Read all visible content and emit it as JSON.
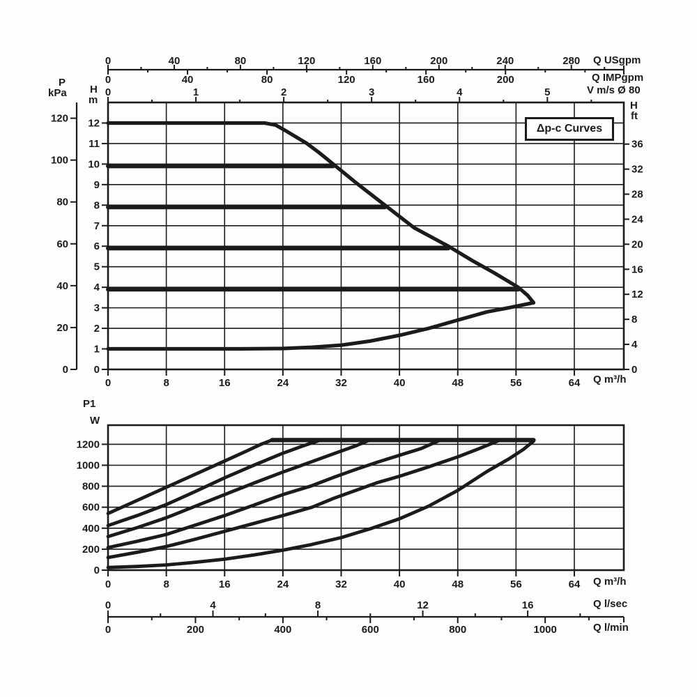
{
  "colors": {
    "ink": "#1b1b1b",
    "background": "#fdfdfd"
  },
  "title_box": "Δp-c Curves",
  "labels": {
    "p": "P",
    "kpa": "kPa",
    "h_left": "H",
    "m": "m",
    "h_right": "H",
    "ft": "ft",
    "q_usgpm": "Q USgpm",
    "q_impgpm": "Q IMPgpm",
    "v_ms": "V m/s Ø 80",
    "q_m3h_top": "Q m³/h",
    "p1": "P1",
    "w": "W",
    "q_m3h_bottom": "Q m³/h",
    "q_lsec": "Q l/sec",
    "q_lmin": "Q l/min"
  },
  "chart_data": [
    {
      "type": "line",
      "name": "head-flow-chart",
      "title": "Δp-c Curves",
      "xlabel": "Q m³/h",
      "ylabel": "H m",
      "xlim": [
        0,
        70.8
      ],
      "ylim": [
        0,
        13
      ],
      "grid": true,
      "axes": {
        "flow_m3h": {
          "title": "Q m³/h",
          "ticks": [
            0,
            8,
            16,
            24,
            32,
            40,
            48,
            56,
            64
          ]
        },
        "head_m": {
          "title": "H m",
          "ticks": [
            0,
            1,
            2,
            3,
            4,
            5,
            6,
            7,
            8,
            9,
            10,
            11,
            12
          ]
        },
        "pressure_kpa": {
          "title": "P kPa",
          "ticks": [
            0,
            20,
            40,
            60,
            80,
            100,
            120
          ],
          "m_per_unit": 0.10194
        },
        "head_ft": {
          "title": "H ft",
          "ticks": [
            0,
            4,
            8,
            12,
            16,
            20,
            24,
            28,
            32,
            36
          ],
          "m_per_unit": 0.3048
        },
        "flow_usgpm": {
          "title": "Q USgpm",
          "ticks": [
            0,
            40,
            80,
            120,
            160,
            200,
            240,
            280
          ],
          "minor_step": 20,
          "minor_max": 300,
          "m3h_per_unit": 0.22712
        },
        "flow_impgpm": {
          "title": "Q IMPgpm",
          "ticks": [
            0,
            40,
            80,
            120,
            160,
            200
          ],
          "minor_step": 20,
          "minor_max": 240,
          "m3h_per_unit": 0.27277
        },
        "velocity_ms": {
          "title": "V m/s Ø 80",
          "ticks": [
            0,
            1,
            2,
            3,
            4,
            5
          ],
          "minor_step": 0.5,
          "minor_max": 5.5,
          "m3h_per_unit": 12.06
        }
      },
      "series": [
        {
          "name": "max-envelope",
          "role": "envelope",
          "points": [
            [
              0,
              12
            ],
            [
              21.5,
              12
            ],
            [
              23,
              11.9
            ],
            [
              24.5,
              11.6
            ],
            [
              27.3,
              11
            ],
            [
              29,
              10.55
            ],
            [
              30.9,
              10
            ],
            [
              34,
              9.1
            ],
            [
              38,
              8
            ],
            [
              42,
              6.9
            ],
            [
              46.7,
              6
            ],
            [
              50,
              5.3
            ],
            [
              53,
              4.7
            ],
            [
              56.3,
              4
            ],
            [
              57.6,
              3.6
            ],
            [
              58.4,
              3.25
            ]
          ]
        },
        {
          "name": "setpoint-10m",
          "role": "setpoint",
          "head_m": 10,
          "points": [
            [
              0,
              10
            ],
            [
              30.9,
              10
            ]
          ]
        },
        {
          "name": "setpoint-8m",
          "role": "setpoint",
          "head_m": 8,
          "points": [
            [
              0,
              8
            ],
            [
              38,
              8
            ]
          ]
        },
        {
          "name": "setpoint-6m",
          "role": "setpoint",
          "head_m": 6,
          "points": [
            [
              0,
              6
            ],
            [
              46.7,
              6
            ]
          ]
        },
        {
          "name": "setpoint-4m",
          "role": "setpoint",
          "head_m": 4,
          "points": [
            [
              0,
              4
            ],
            [
              56.3,
              4
            ]
          ]
        },
        {
          "name": "min-envelope",
          "role": "envelope",
          "points": [
            [
              0,
              1
            ],
            [
              18,
              1
            ],
            [
              24,
              1.02
            ],
            [
              28,
              1.08
            ],
            [
              32,
              1.18
            ],
            [
              36,
              1.38
            ],
            [
              40,
              1.66
            ],
            [
              44,
              2.0
            ],
            [
              48,
              2.4
            ],
            [
              52,
              2.8
            ],
            [
              55,
              3.0
            ],
            [
              58.4,
              3.25
            ]
          ]
        }
      ]
    },
    {
      "type": "line",
      "name": "power-flow-chart",
      "xlabel": "Q m³/h",
      "ylabel": "P1 W",
      "xlim": [
        0,
        70.8
      ],
      "ylim": [
        0,
        1385
      ],
      "grid": true,
      "axes": {
        "power_w": {
          "title": "P1 W",
          "ticks": [
            0,
            200,
            400,
            600,
            800,
            1000,
            1200
          ]
        },
        "flow_m3h": {
          "title": "Q m³/h",
          "ticks": [
            0,
            8,
            16,
            24,
            32,
            40,
            48,
            56,
            64
          ]
        },
        "flow_lsec": {
          "title": "Q l/sec",
          "ticks": [
            0,
            4,
            8,
            12,
            16
          ],
          "minor_step": 2,
          "minor_max": 18,
          "m3h_per_unit": 3.6
        },
        "flow_lmin": {
          "title": "Q l/min",
          "ticks": [
            0,
            200,
            400,
            600,
            800,
            1000
          ],
          "minor_step": 100,
          "minor_max": 1100,
          "m3h_per_unit": 0.06
        }
      },
      "series": [
        {
          "name": "power-limit-plateau",
          "role": "plateau",
          "points": [
            [
              22.5,
              1240
            ],
            [
              58.4,
              1240
            ]
          ]
        },
        {
          "name": "p1-curve-1",
          "role": "power",
          "start_w": 540,
          "points": [
            [
              0,
              540
            ],
            [
              4,
              665
            ],
            [
              8,
              790
            ],
            [
              12,
              915
            ],
            [
              16,
              1040
            ],
            [
              19,
              1135
            ],
            [
              21,
              1200
            ],
            [
              22.5,
              1240
            ]
          ]
        },
        {
          "name": "p1-curve-2",
          "role": "power",
          "start_w": 425,
          "points": [
            [
              0,
              425
            ],
            [
              4,
              520
            ],
            [
              8,
              625
            ],
            [
              12,
              750
            ],
            [
              16,
              880
            ],
            [
              20,
              1000
            ],
            [
              24,
              1115
            ],
            [
              27,
              1190
            ],
            [
              29.2,
              1240
            ]
          ]
        },
        {
          "name": "p1-curve-3",
          "role": "power",
          "start_w": 320,
          "points": [
            [
              0,
              320
            ],
            [
              4,
              405
            ],
            [
              8,
              500
            ],
            [
              12,
              610
            ],
            [
              16,
              720
            ],
            [
              20,
              830
            ],
            [
              24,
              935
            ],
            [
              28,
              1035
            ],
            [
              31,
              1110
            ],
            [
              34,
              1185
            ],
            [
              35.9,
              1240
            ]
          ]
        },
        {
          "name": "p1-curve-4",
          "role": "power",
          "start_w": 215,
          "points": [
            [
              0,
              215
            ],
            [
              4,
              275
            ],
            [
              8,
              340
            ],
            [
              12,
              430
            ],
            [
              16,
              520
            ],
            [
              20,
              620
            ],
            [
              24,
              720
            ],
            [
              28,
              805
            ],
            [
              31,
              885
            ],
            [
              34,
              960
            ],
            [
              37,
              1030
            ],
            [
              40,
              1095
            ],
            [
              43,
              1160
            ],
            [
              45.6,
              1240
            ]
          ]
        },
        {
          "name": "p1-curve-5",
          "role": "power",
          "start_w": 120,
          "points": [
            [
              0,
              120
            ],
            [
              4,
              170
            ],
            [
              8,
              225
            ],
            [
              12,
              295
            ],
            [
              16,
              370
            ],
            [
              20,
              445
            ],
            [
              24,
              520
            ],
            [
              28,
              600
            ],
            [
              31,
              685
            ],
            [
              34,
              760
            ],
            [
              37,
              835
            ],
            [
              40,
              895
            ],
            [
              44,
              985
            ],
            [
              48,
              1080
            ],
            [
              51,
              1160
            ],
            [
              53.8,
              1240
            ]
          ]
        },
        {
          "name": "p1-curve-6",
          "role": "power",
          "start_w": 25,
          "points": [
            [
              0,
              25
            ],
            [
              4,
              35
            ],
            [
              8,
              50
            ],
            [
              12,
              75
            ],
            [
              16,
              105
            ],
            [
              20,
              145
            ],
            [
              24,
              190
            ],
            [
              28,
              245
            ],
            [
              32,
              310
            ],
            [
              36,
              395
            ],
            [
              40,
              490
            ],
            [
              44,
              610
            ],
            [
              48,
              760
            ],
            [
              52,
              940
            ],
            [
              55,
              1060
            ],
            [
              57,
              1150
            ],
            [
              58.4,
              1230
            ]
          ]
        }
      ]
    }
  ]
}
